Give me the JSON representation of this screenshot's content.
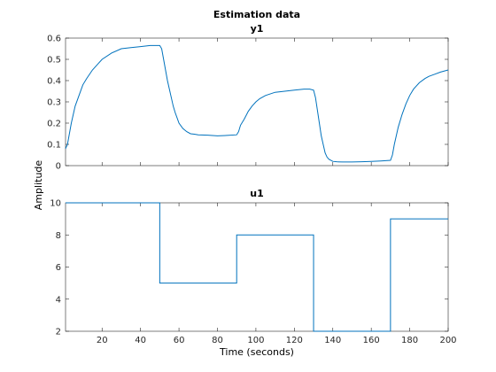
{
  "chart_data": {
    "title": "Estimation data",
    "xlabel": "Time (seconds)",
    "ylabel": "Amplitude",
    "color": "#0072BD",
    "axis_color": "#262626",
    "grid": false,
    "xlim": [
      1,
      200
    ],
    "xticks": [
      20,
      40,
      60,
      80,
      100,
      120,
      140,
      160,
      180,
      200
    ],
    "panels": [
      {
        "type": "line",
        "title": "y1",
        "ylim": [
          0,
          0.6
        ],
        "yticks": [
          "0",
          "0.1",
          "0.2",
          "0.3",
          "0.4",
          "0.5",
          "0.6"
        ],
        "show_xtick_labels": false,
        "x": [
          1,
          2,
          3,
          4,
          5,
          6,
          8,
          10,
          12,
          15,
          18,
          20,
          25,
          30,
          35,
          40,
          45,
          50,
          51,
          52,
          53,
          54,
          55,
          56,
          57,
          58,
          60,
          62,
          64,
          66,
          68,
          70,
          75,
          80,
          85,
          90,
          91,
          92,
          94,
          96,
          98,
          100,
          102,
          105,
          110,
          115,
          120,
          125,
          128,
          130,
          131,
          132,
          133,
          134,
          135,
          136,
          137,
          138,
          140,
          142,
          145,
          150,
          155,
          160,
          165,
          170,
          171,
          172,
          174,
          176,
          178,
          180,
          182,
          185,
          188,
          190,
          193,
          196,
          200
        ],
        "y": [
          0.08,
          0.1,
          0.15,
          0.2,
          0.24,
          0.28,
          0.33,
          0.38,
          0.41,
          0.45,
          0.48,
          0.5,
          0.53,
          0.55,
          0.555,
          0.56,
          0.565,
          0.565,
          0.55,
          0.5,
          0.45,
          0.4,
          0.36,
          0.32,
          0.28,
          0.25,
          0.2,
          0.175,
          0.16,
          0.15,
          0.148,
          0.145,
          0.143,
          0.14,
          0.142,
          0.145,
          0.16,
          0.19,
          0.22,
          0.255,
          0.28,
          0.3,
          0.315,
          0.33,
          0.345,
          0.35,
          0.355,
          0.36,
          0.36,
          0.355,
          0.32,
          0.26,
          0.2,
          0.14,
          0.1,
          0.06,
          0.04,
          0.03,
          0.02,
          0.018,
          0.017,
          0.017,
          0.018,
          0.02,
          0.022,
          0.025,
          0.05,
          0.1,
          0.18,
          0.24,
          0.29,
          0.33,
          0.36,
          0.39,
          0.41,
          0.42,
          0.43,
          0.44,
          0.45
        ]
      },
      {
        "type": "step",
        "title": "u1",
        "ylim": [
          2,
          10
        ],
        "yticks": [
          "2",
          "4",
          "6",
          "8",
          "10"
        ],
        "show_xtick_labels": true,
        "x": [
          1,
          50,
          50,
          90,
          90,
          130,
          130,
          170,
          170,
          200
        ],
        "y": [
          10,
          10,
          5,
          5,
          8,
          8,
          2,
          2,
          9,
          9
        ]
      }
    ]
  }
}
